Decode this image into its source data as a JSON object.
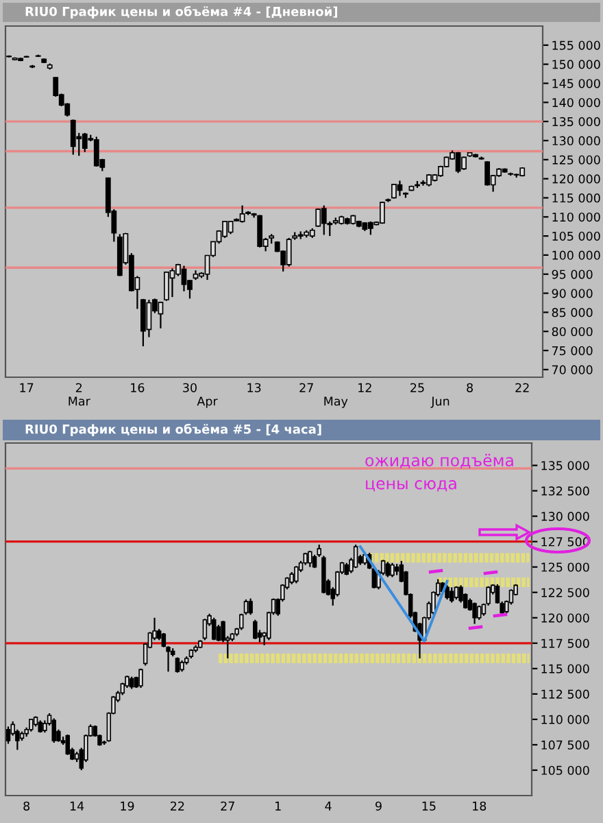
{
  "chart_data": [
    {
      "type": "candlestick",
      "title": "RIU0 График цены и объёма #4 - [Дневной]",
      "categories": [
        null,
        null,
        null,
        "17",
        null,
        null,
        null,
        null,
        null,
        null,
        null,
        null,
        "2\nMar",
        null,
        null,
        null,
        null,
        null,
        null,
        null,
        null,
        null,
        "16",
        null,
        null,
        null,
        null,
        null,
        null,
        null,
        null,
        "30",
        null,
        null,
        "\nApr",
        null,
        null,
        null,
        null,
        null,
        null,
        null,
        "13",
        null,
        null,
        null,
        null,
        null,
        null,
        null,
        null,
        "27",
        null,
        null,
        null,
        null,
        "\nMay",
        null,
        null,
        null,
        null,
        "12",
        null,
        null,
        null,
        null,
        null,
        null,
        null,
        null,
        "25",
        null,
        null,
        null,
        "\nJun",
        null,
        null,
        null,
        null,
        "8",
        null,
        null,
        null,
        null,
        null,
        null,
        null,
        null,
        "22",
        null,
        null,
        null
      ],
      "ohlc": [
        [
          152000,
          152300,
          151800,
          152100
        ],
        [
          151200,
          151800,
          151000,
          151600
        ],
        [
          151500,
          151700,
          150800,
          151000
        ],
        [
          152000,
          152200,
          151800,
          151900
        ],
        [
          149500,
          149800,
          149000,
          149300
        ],
        [
          152200,
          152500,
          151900,
          152100
        ],
        [
          151300,
          151500,
          150300,
          150500
        ],
        [
          149000,
          150200,
          148600,
          149800
        ],
        [
          146500,
          146600,
          141500,
          141800
        ],
        [
          142000,
          142300,
          139000,
          139300
        ],
        [
          139600,
          139800,
          136300,
          136700
        ],
        [
          135300,
          135500,
          126300,
          128500
        ],
        [
          131000,
          132000,
          126000,
          130500
        ],
        [
          131700,
          132000,
          127000,
          128000
        ],
        [
          130200,
          131500,
          129800,
          130500
        ],
        [
          130200,
          131000,
          123200,
          123400
        ],
        [
          125000,
          125200,
          122000,
          123000
        ],
        [
          120200,
          120300,
          110000,
          111200
        ],
        [
          111500,
          112000,
          103500,
          105800
        ],
        [
          104700,
          105500,
          94500,
          94700
        ],
        [
          98000,
          105800,
          97500,
          105600
        ],
        [
          99900,
          100500,
          90500,
          90700
        ],
        [
          91000,
          94500,
          85900,
          94100
        ],
        [
          88300,
          88500,
          76100,
          80100
        ],
        [
          80500,
          88300,
          78500,
          87500
        ],
        [
          88300,
          88600,
          84800,
          85400
        ],
        [
          84600,
          87800,
          80800,
          87600
        ],
        [
          88300,
          95500,
          88000,
          95500
        ],
        [
          94000,
          96500,
          89000,
          95900
        ],
        [
          95000,
          97700,
          94500,
          97500
        ],
        [
          96300,
          97200,
          90500,
          92300
        ],
        [
          93300,
          93500,
          88600,
          91000
        ],
        [
          94000,
          96000,
          93500,
          95000
        ],
        [
          94500,
          95500,
          94000,
          95200
        ],
        [
          95000,
          100000,
          93500,
          99900
        ],
        [
          99900,
          103500,
          99500,
          103500
        ],
        [
          103500,
          106500,
          103000,
          106300
        ],
        [
          104900,
          108800,
          104500,
          108800
        ],
        [
          106000,
          108900,
          105500,
          108800
        ],
        [
          109300,
          109600,
          108800,
          109000
        ],
        [
          108800,
          113000,
          108500,
          110800
        ],
        [
          111200,
          111500,
          110500,
          110900
        ],
        [
          110800,
          111000,
          109800,
          110500
        ],
        [
          110300,
          110500,
          102000,
          102300
        ],
        [
          102300,
          104500,
          101000,
          104100
        ],
        [
          104500,
          105500,
          103000,
          105000
        ],
        [
          103400,
          103600,
          100800,
          101000
        ],
        [
          101000,
          101200,
          95700,
          97500
        ],
        [
          97500,
          104500,
          97000,
          104100
        ],
        [
          104500,
          106000,
          104000,
          105000
        ],
        [
          105000,
          106200,
          104200,
          105300
        ],
        [
          105200,
          106500,
          104600,
          106000
        ],
        [
          105000,
          107000,
          104500,
          106500
        ],
        [
          107600,
          112200,
          107400,
          112000
        ],
        [
          112200,
          113000,
          105300,
          108300
        ],
        [
          108300,
          108800,
          105000,
          108000
        ],
        [
          108500,
          109800,
          108000,
          109000
        ],
        [
          108300,
          110300,
          108000,
          110000
        ],
        [
          109500,
          109800,
          108000,
          108300
        ],
        [
          108300,
          110500,
          108000,
          110300
        ],
        [
          108800,
          109000,
          107300,
          107600
        ],
        [
          108400,
          108600,
          106300,
          106800
        ],
        [
          108500,
          108800,
          105300,
          107000
        ],
        [
          108000,
          108800,
          107800,
          108600
        ],
        [
          108400,
          114000,
          108200,
          113800
        ],
        [
          114500,
          114800,
          113900,
          114300
        ],
        [
          115000,
          118600,
          114800,
          118500
        ],
        [
          118400,
          119500,
          115500,
          117000
        ],
        [
          116200,
          116400,
          115000,
          116000
        ],
        [
          117000,
          118200,
          116800,
          118000
        ],
        [
          118200,
          119400,
          117600,
          118400
        ],
        [
          118800,
          119600,
          118200,
          119000
        ],
        [
          118400,
          121200,
          118000,
          121000
        ],
        [
          119600,
          121200,
          119300,
          121000
        ],
        [
          120800,
          123400,
          120500,
          123200
        ],
        [
          123200,
          125800,
          123000,
          125600
        ],
        [
          125200,
          127400,
          125000,
          126800
        ],
        [
          126800,
          127000,
          121500,
          122000
        ],
        [
          122600,
          125800,
          122300,
          125600
        ],
        [
          126000,
          126900,
          125700,
          126800
        ],
        [
          126300,
          126500,
          125600,
          125800
        ],
        [
          125400,
          125800,
          125000,
          125200
        ],
        [
          124400,
          124600,
          118200,
          118400
        ],
        [
          118400,
          121000,
          116600,
          120800
        ],
        [
          120800,
          122800,
          120500,
          122500
        ],
        [
          122500,
          122700,
          121600,
          121800
        ],
        [
          121300,
          121600,
          120800,
          121200
        ],
        [
          121100,
          121300,
          120300,
          121000
        ],
        [
          120800,
          123000,
          120600,
          122800
        ],
        null,
        null,
        null
      ],
      "ylim": [
        68000,
        160000
      ],
      "yticks": [
        {
          "value": 70000,
          "label": "70 000"
        },
        {
          "value": 75000,
          "label": "75 000"
        },
        {
          "value": 80000,
          "label": "80 000"
        },
        {
          "value": 85000,
          "label": "85 000"
        },
        {
          "value": 90000,
          "label": "90 000"
        },
        {
          "value": 95000,
          "label": "95 000"
        },
        {
          "value": 100000,
          "label": "100 000"
        },
        {
          "value": 105000,
          "label": "105 000"
        },
        {
          "value": 110000,
          "label": "110 000"
        },
        {
          "value": 115000,
          "label": "115 000"
        },
        {
          "value": 120000,
          "label": "120 000"
        },
        {
          "value": 125000,
          "label": "125 000"
        },
        {
          "value": 130000,
          "label": "130 000"
        },
        {
          "value": 135000,
          "label": "135 000"
        },
        {
          "value": 140000,
          "label": "140 000"
        },
        {
          "value": 145000,
          "label": "145 000"
        },
        {
          "value": 150000,
          "label": "150 000"
        },
        {
          "value": 155000,
          "label": "155 000"
        }
      ],
      "ref_lines": [
        {
          "axis": "y",
          "value": 135000,
          "color": "#e88888"
        },
        {
          "axis": "y",
          "value": 127200,
          "color": "#e88888"
        },
        {
          "axis": "y",
          "value": 112400,
          "color": "#e88888"
        },
        {
          "axis": "y",
          "value": 96700,
          "color": "#e88888"
        }
      ]
    },
    {
      "type": "candlestick",
      "title": "RIU0 График цены и объёма #5 - [4 часа]",
      "categories": [
        null,
        null,
        null,
        null,
        "8",
        null,
        null,
        null,
        null,
        null,
        null,
        null,
        null,
        null,
        null,
        "14",
        null,
        null,
        null,
        null,
        null,
        null,
        null,
        null,
        null,
        null,
        "19",
        null,
        null,
        null,
        null,
        null,
        null,
        null,
        null,
        null,
        null,
        "22",
        null,
        null,
        null,
        null,
        null,
        null,
        null,
        null,
        null,
        null,
        "27",
        null,
        null,
        null,
        null,
        null,
        null,
        null,
        null,
        null,
        null,
        "1",
        null,
        null,
        null,
        null,
        null,
        null,
        null,
        null,
        null,
        null,
        "4",
        null,
        null,
        null,
        null,
        null,
        null,
        null,
        null,
        null,
        null,
        "9",
        null,
        null,
        null,
        null,
        null,
        null,
        null,
        null,
        null,
        null,
        "15",
        null,
        null,
        null,
        null,
        null,
        null,
        null,
        null,
        null,
        null,
        "18",
        null,
        null,
        null,
        null,
        null,
        null,
        null,
        null,
        null,
        null,
        null
      ],
      "ohlc": [
        [
          109000,
          109300,
          107600,
          107900
        ],
        [
          108600,
          109800,
          108400,
          109500
        ],
        [
          108800,
          109000,
          107000,
          107900
        ],
        [
          108150,
          108800,
          107900,
          108600
        ],
        [
          108600,
          109200,
          108300,
          109000
        ],
        [
          109000,
          110000,
          108800,
          110000
        ],
        [
          109500,
          110300,
          109300,
          110200
        ],
        [
          109700,
          109900,
          108700,
          108800
        ],
        [
          108900,
          109900,
          108700,
          109600
        ],
        [
          109600,
          110600,
          109400,
          110400
        ],
        [
          109900,
          110100,
          107700,
          107900
        ],
        [
          108800,
          109000,
          107800,
          107900
        ],
        [
          107900,
          108300,
          107500,
          107700
        ],
        [
          108400,
          108500,
          106500,
          106600
        ],
        [
          107000,
          107200,
          106000,
          106100
        ],
        [
          106100,
          106800,
          105800,
          106600
        ],
        [
          107000,
          107200,
          105000,
          105200
        ],
        [
          106000,
          108500,
          105800,
          108400
        ],
        [
          108400,
          109500,
          108300,
          109300
        ],
        [
          109300,
          109400,
          108300,
          108400
        ],
        [
          108400,
          108500,
          107400,
          107500
        ],
        [
          107700,
          107900,
          107500,
          107700
        ],
        [
          107900,
          110700,
          107800,
          110600
        ],
        [
          110600,
          112300,
          110500,
          112200
        ],
        [
          111900,
          112800,
          111700,
          112600
        ],
        [
          112600,
          113600,
          112400,
          113500
        ],
        [
          113300,
          114300,
          113100,
          114200
        ],
        [
          114000,
          114200,
          113000,
          113200
        ],
        [
          114100,
          114200,
          113100,
          113200
        ],
        [
          113300,
          115000,
          113100,
          114900
        ],
        [
          115500,
          117500,
          115300,
          117400
        ],
        [
          117100,
          118600,
          117000,
          118500
        ],
        [
          118000,
          120000,
          117800,
          118700
        ],
        [
          118700,
          118900,
          117800,
          118000
        ],
        [
          118400,
          118500,
          117100,
          117200
        ],
        [
          117100,
          117200,
          114700,
          116700
        ],
        [
          116700,
          117000,
          116200,
          116400
        ],
        [
          116000,
          116100,
          114600,
          114700
        ],
        [
          114900,
          115800,
          114700,
          115600
        ],
        [
          115600,
          116200,
          115400,
          116000
        ],
        [
          116200,
          116900,
          116000,
          116800
        ],
        [
          116800,
          117300,
          116600,
          117100
        ],
        [
          117100,
          117800,
          117000,
          117700
        ],
        [
          118000,
          119900,
          117800,
          119800
        ],
        [
          119400,
          120400,
          119200,
          120200
        ],
        [
          119800,
          120000,
          117800,
          117900
        ],
        [
          119100,
          119300,
          117700,
          117800
        ],
        [
          119600,
          119700,
          117600,
          117800
        ],
        [
          117800,
          118200,
          116000,
          118000
        ],
        [
          117900,
          118500,
          117700,
          118400
        ],
        [
          118400,
          119000,
          118200,
          118900
        ],
        [
          119000,
          120400,
          118800,
          120300
        ],
        [
          120500,
          121800,
          120300,
          121600
        ],
        [
          121600,
          121900,
          120300,
          120500
        ],
        [
          119600,
          119800,
          117900,
          118000
        ],
        [
          118500,
          118800,
          117600,
          118100
        ],
        [
          118200,
          118600,
          117300,
          118500
        ],
        [
          118000,
          120600,
          117800,
          120500
        ],
        [
          120500,
          121900,
          120300,
          121800
        ],
        [
          121800,
          121900,
          120200,
          120400
        ],
        [
          121800,
          123300,
          121600,
          123200
        ],
        [
          123000,
          124000,
          122800,
          123900
        ],
        [
          123500,
          124500,
          123300,
          124300
        ],
        [
          123600,
          125100,
          123400,
          125000
        ],
        [
          124700,
          125600,
          124500,
          125400
        ],
        [
          125400,
          126400,
          125200,
          126300
        ],
        [
          125400,
          126600,
          125000,
          126500
        ],
        [
          126000,
          126200,
          124900,
          125000
        ],
        [
          126200,
          127200,
          126000,
          126800
        ],
        [
          125900,
          126100,
          122400,
          122500
        ],
        [
          123600,
          123800,
          122200,
          122300
        ],
        [
          122800,
          123000,
          121200,
          121900
        ],
        [
          122300,
          124600,
          122100,
          124500
        ],
        [
          124500,
          125500,
          124300,
          125400
        ],
        [
          125200,
          125400,
          124200,
          124300
        ],
        [
          124600,
          125900,
          124400,
          125700
        ],
        [
          125000,
          127200,
          124900,
          127000
        ],
        [
          126000,
          126200,
          125200,
          125400
        ],
        [
          125400,
          126300,
          125200,
          126200
        ],
        [
          126200,
          126400,
          124800,
          124900
        ],
        [
          124800,
          125000,
          122900,
          123000
        ],
        [
          123000,
          124700,
          122800,
          124500
        ],
        [
          124400,
          125700,
          124200,
          125600
        ],
        [
          125300,
          125500,
          124000,
          124200
        ],
        [
          124200,
          125400,
          124000,
          125200
        ],
        [
          125000,
          125300,
          124200,
          124600
        ],
        [
          125200,
          125600,
          123500,
          123600
        ],
        [
          124500,
          124600,
          122200,
          122300
        ],
        [
          122300,
          122400,
          120000,
          120200
        ],
        [
          120500,
          120600,
          118600,
          118700
        ],
        [
          119400,
          119500,
          116000,
          117800
        ],
        [
          117800,
          120100,
          117600,
          120000
        ],
        [
          120000,
          121600,
          119800,
          121400
        ],
        [
          120500,
          122600,
          120300,
          122500
        ],
        [
          122300,
          123800,
          122100,
          123400
        ],
        [
          123400,
          123500,
          122500,
          122600
        ],
        [
          123000,
          123200,
          121800,
          122000
        ],
        [
          122600,
          123000,
          121500,
          121700
        ],
        [
          122000,
          123100,
          121800,
          123000
        ],
        [
          123000,
          123200,
          121500,
          121700
        ],
        [
          122300,
          122400,
          120900,
          121000
        ],
        [
          121700,
          121900,
          120700,
          120800
        ],
        [
          121400,
          121500,
          119400,
          120000
        ],
        [
          120000,
          121200,
          119800,
          121100
        ],
        [
          120400,
          121400,
          120200,
          121300
        ],
        [
          121400,
          123100,
          121200,
          123000
        ],
        [
          122500,
          123300,
          122300,
          123200
        ],
        [
          123100,
          123300,
          121400,
          121500
        ],
        [
          121400,
          121600,
          120400,
          120500
        ],
        [
          120600,
          121700,
          120400,
          121600
        ],
        [
          121500,
          122800,
          121300,
          122700
        ],
        [
          122300,
          123300,
          122200,
          123200
        ],
        null,
        null,
        null
      ],
      "series": [
        {
          "type": "line",
          "color": "#3a8ee0",
          "line_style": "solid",
          "values": [
            null,
            null,
            null,
            null,
            null,
            null,
            null,
            null,
            null,
            null,
            null,
            null,
            null,
            null,
            null,
            null,
            null,
            null,
            null,
            null,
            null,
            null,
            null,
            null,
            null,
            null,
            null,
            null,
            null,
            null,
            null,
            null,
            null,
            null,
            null,
            null,
            null,
            null,
            null,
            null,
            null,
            null,
            null,
            null,
            null,
            null,
            null,
            null,
            null,
            null,
            null,
            null,
            null,
            null,
            null,
            null,
            null,
            null,
            null,
            null,
            null,
            null,
            null,
            null,
            null,
            null,
            null,
            null,
            null,
            null,
            null,
            null,
            null,
            null,
            null,
            null,
            null,
            127000,
            null,
            null,
            null,
            null,
            null,
            null,
            null,
            null,
            null,
            null,
            null,
            null,
            null,
            117700,
            null,
            null,
            null,
            null,
            123600,
            null,
            null,
            null,
            null,
            null,
            null,
            null,
            null,
            null,
            null,
            null,
            null,
            null,
            null,
            null,
            null,
            null,
            null
          ]
        },
        {
          "type": "line",
          "color": "#e4df78",
          "line_style": "dotted",
          "values": [
            null,
            null,
            null,
            null,
            null,
            null,
            null,
            null,
            null,
            null,
            null,
            null,
            null,
            null,
            null,
            null,
            null,
            null,
            null,
            null,
            null,
            null,
            null,
            null,
            null,
            null,
            null,
            null,
            null,
            null,
            null,
            null,
            null,
            null,
            null,
            null,
            null,
            null,
            null,
            null,
            null,
            null,
            null,
            null,
            null,
            null,
            116000,
            116000,
            116000,
            116000,
            116000,
            116000,
            116000,
            116000,
            116000,
            116000,
            116000,
            116000,
            116000,
            116000,
            116000,
            116000,
            116000,
            116000,
            116000,
            116000,
            116000,
            116000,
            116000,
            116000,
            116000,
            116000,
            116000,
            116000,
            116000,
            116000,
            116000,
            116000,
            116000,
            116000,
            116000,
            116000,
            116000,
            116000,
            116000,
            116000,
            116000,
            116000,
            116000,
            116000,
            116000,
            116000,
            116000,
            116000,
            116000,
            116000,
            116000,
            116000,
            116000,
            116000,
            116000,
            116000,
            116000,
            116000,
            116000,
            116000,
            116000,
            116000,
            116000,
            116000,
            116000,
            116000,
            116000,
            116000,
            116000
          ]
        },
        {
          "type": "line",
          "color": "#e4df78",
          "line_style": "dotted",
          "values": [
            null,
            null,
            null,
            null,
            null,
            null,
            null,
            null,
            null,
            null,
            null,
            null,
            null,
            null,
            null,
            null,
            null,
            null,
            null,
            null,
            null,
            null,
            null,
            null,
            null,
            null,
            null,
            null,
            null,
            null,
            null,
            null,
            null,
            null,
            null,
            null,
            null,
            null,
            null,
            null,
            null,
            null,
            null,
            null,
            null,
            null,
            null,
            null,
            null,
            null,
            null,
            null,
            null,
            null,
            null,
            null,
            null,
            null,
            null,
            null,
            null,
            null,
            null,
            null,
            null,
            null,
            null,
            null,
            null,
            null,
            null,
            null,
            null,
            null,
            null,
            null,
            null,
            null,
            null,
            125900,
            125900,
            125900,
            125900,
            125900,
            125900,
            125900,
            125900,
            125900,
            125900,
            125900,
            125900,
            125900,
            125900,
            125900,
            125900,
            125900,
            125900,
            125900,
            125900,
            125900,
            125900,
            125900,
            125900,
            125900,
            125900,
            125900,
            125900,
            125900,
            125900,
            125900,
            125900,
            125900,
            125900,
            125900,
            125900
          ]
        },
        {
          "type": "line",
          "color": "#e4df78",
          "line_style": "dotted",
          "values": [
            null,
            null,
            null,
            null,
            null,
            null,
            null,
            null,
            null,
            null,
            null,
            null,
            null,
            null,
            null,
            null,
            null,
            null,
            null,
            null,
            null,
            null,
            null,
            null,
            null,
            null,
            null,
            null,
            null,
            null,
            null,
            null,
            null,
            null,
            null,
            null,
            null,
            null,
            null,
            null,
            null,
            null,
            null,
            null,
            null,
            null,
            null,
            null,
            null,
            null,
            null,
            null,
            null,
            null,
            null,
            null,
            null,
            null,
            null,
            null,
            null,
            null,
            null,
            null,
            null,
            null,
            null,
            null,
            null,
            null,
            null,
            null,
            null,
            null,
            null,
            null,
            null,
            null,
            null,
            null,
            null,
            null,
            null,
            null,
            null,
            null,
            null,
            null,
            null,
            null,
            null,
            null,
            null,
            null,
            123500,
            123500,
            123500,
            123500,
            123500,
            123500,
            123500,
            123500,
            123500,
            123500,
            123500,
            123500,
            123500,
            123500,
            123500,
            123500,
            123500,
            123500,
            123500,
            123500,
            123500
          ]
        }
      ],
      "ylim": [
        102500,
        137200
      ],
      "yticks": [
        {
          "value": 105000,
          "label": "105 000"
        },
        {
          "value": 107500,
          "label": "107 500"
        },
        {
          "value": 110000,
          "label": "110 000"
        },
        {
          "value": 112500,
          "label": "112 500"
        },
        {
          "value": 115000,
          "label": "115 000"
        },
        {
          "value": 117500,
          "label": "117 500"
        },
        {
          "value": 120000,
          "label": "120 000"
        },
        {
          "value": 122500,
          "label": "122 500"
        },
        {
          "value": 125000,
          "label": "125 000"
        },
        {
          "value": 127500,
          "label": "127 500"
        },
        {
          "value": 130000,
          "label": "130 000"
        },
        {
          "value": 132500,
          "label": "132 500"
        },
        {
          "value": 135000,
          "label": "135 000"
        }
      ],
      "ref_lines": [
        {
          "axis": "y",
          "value": 134700,
          "color": "#e88888"
        },
        {
          "axis": "y",
          "value": 127500,
          "color": "#dd1111"
        },
        {
          "axis": "y",
          "value": 117500,
          "color": "#dd1111"
        }
      ],
      "annotations": [
        "ожидаю подъёма\nцены сюда"
      ]
    }
  ]
}
